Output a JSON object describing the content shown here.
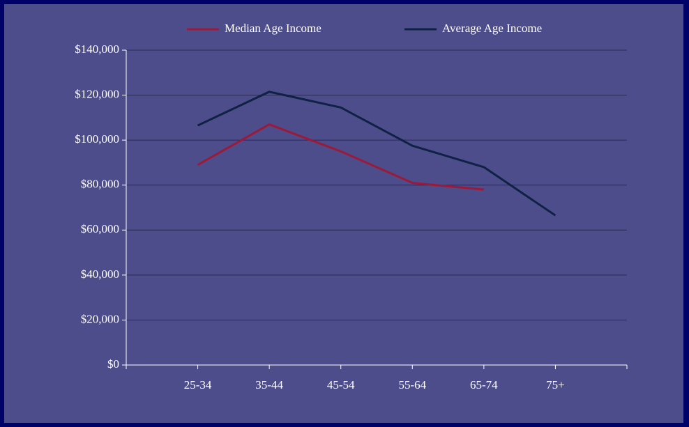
{
  "chart_data": {
    "type": "line",
    "categories": [
      "25-34",
      "35-44",
      "45-54",
      "55-64",
      "65-74",
      "75+"
    ],
    "series": [
      {
        "name": "Median Age Income",
        "color": "#9b1a3a",
        "values": [
          89000,
          107000,
          95000,
          81000,
          78000,
          null
        ]
      },
      {
        "name": "Average Age Income",
        "color": "#0f2244",
        "values": [
          106500,
          121500,
          114500,
          97500,
          88000,
          66500
        ]
      }
    ],
    "ylim": [
      0,
      140000
    ],
    "yticks": [
      {
        "value": 0,
        "label": "$0"
      },
      {
        "value": 20000,
        "label": "$20,000"
      },
      {
        "value": 40000,
        "label": "$40,000"
      },
      {
        "value": 60000,
        "label": "$60,000"
      },
      {
        "value": 80000,
        "label": "$80,000"
      },
      {
        "value": 100000,
        "label": "$100,000"
      },
      {
        "value": 120000,
        "label": "$120,000"
      },
      {
        "value": 140000,
        "label": "$140,000"
      }
    ],
    "grid": true,
    "legend": "top"
  }
}
